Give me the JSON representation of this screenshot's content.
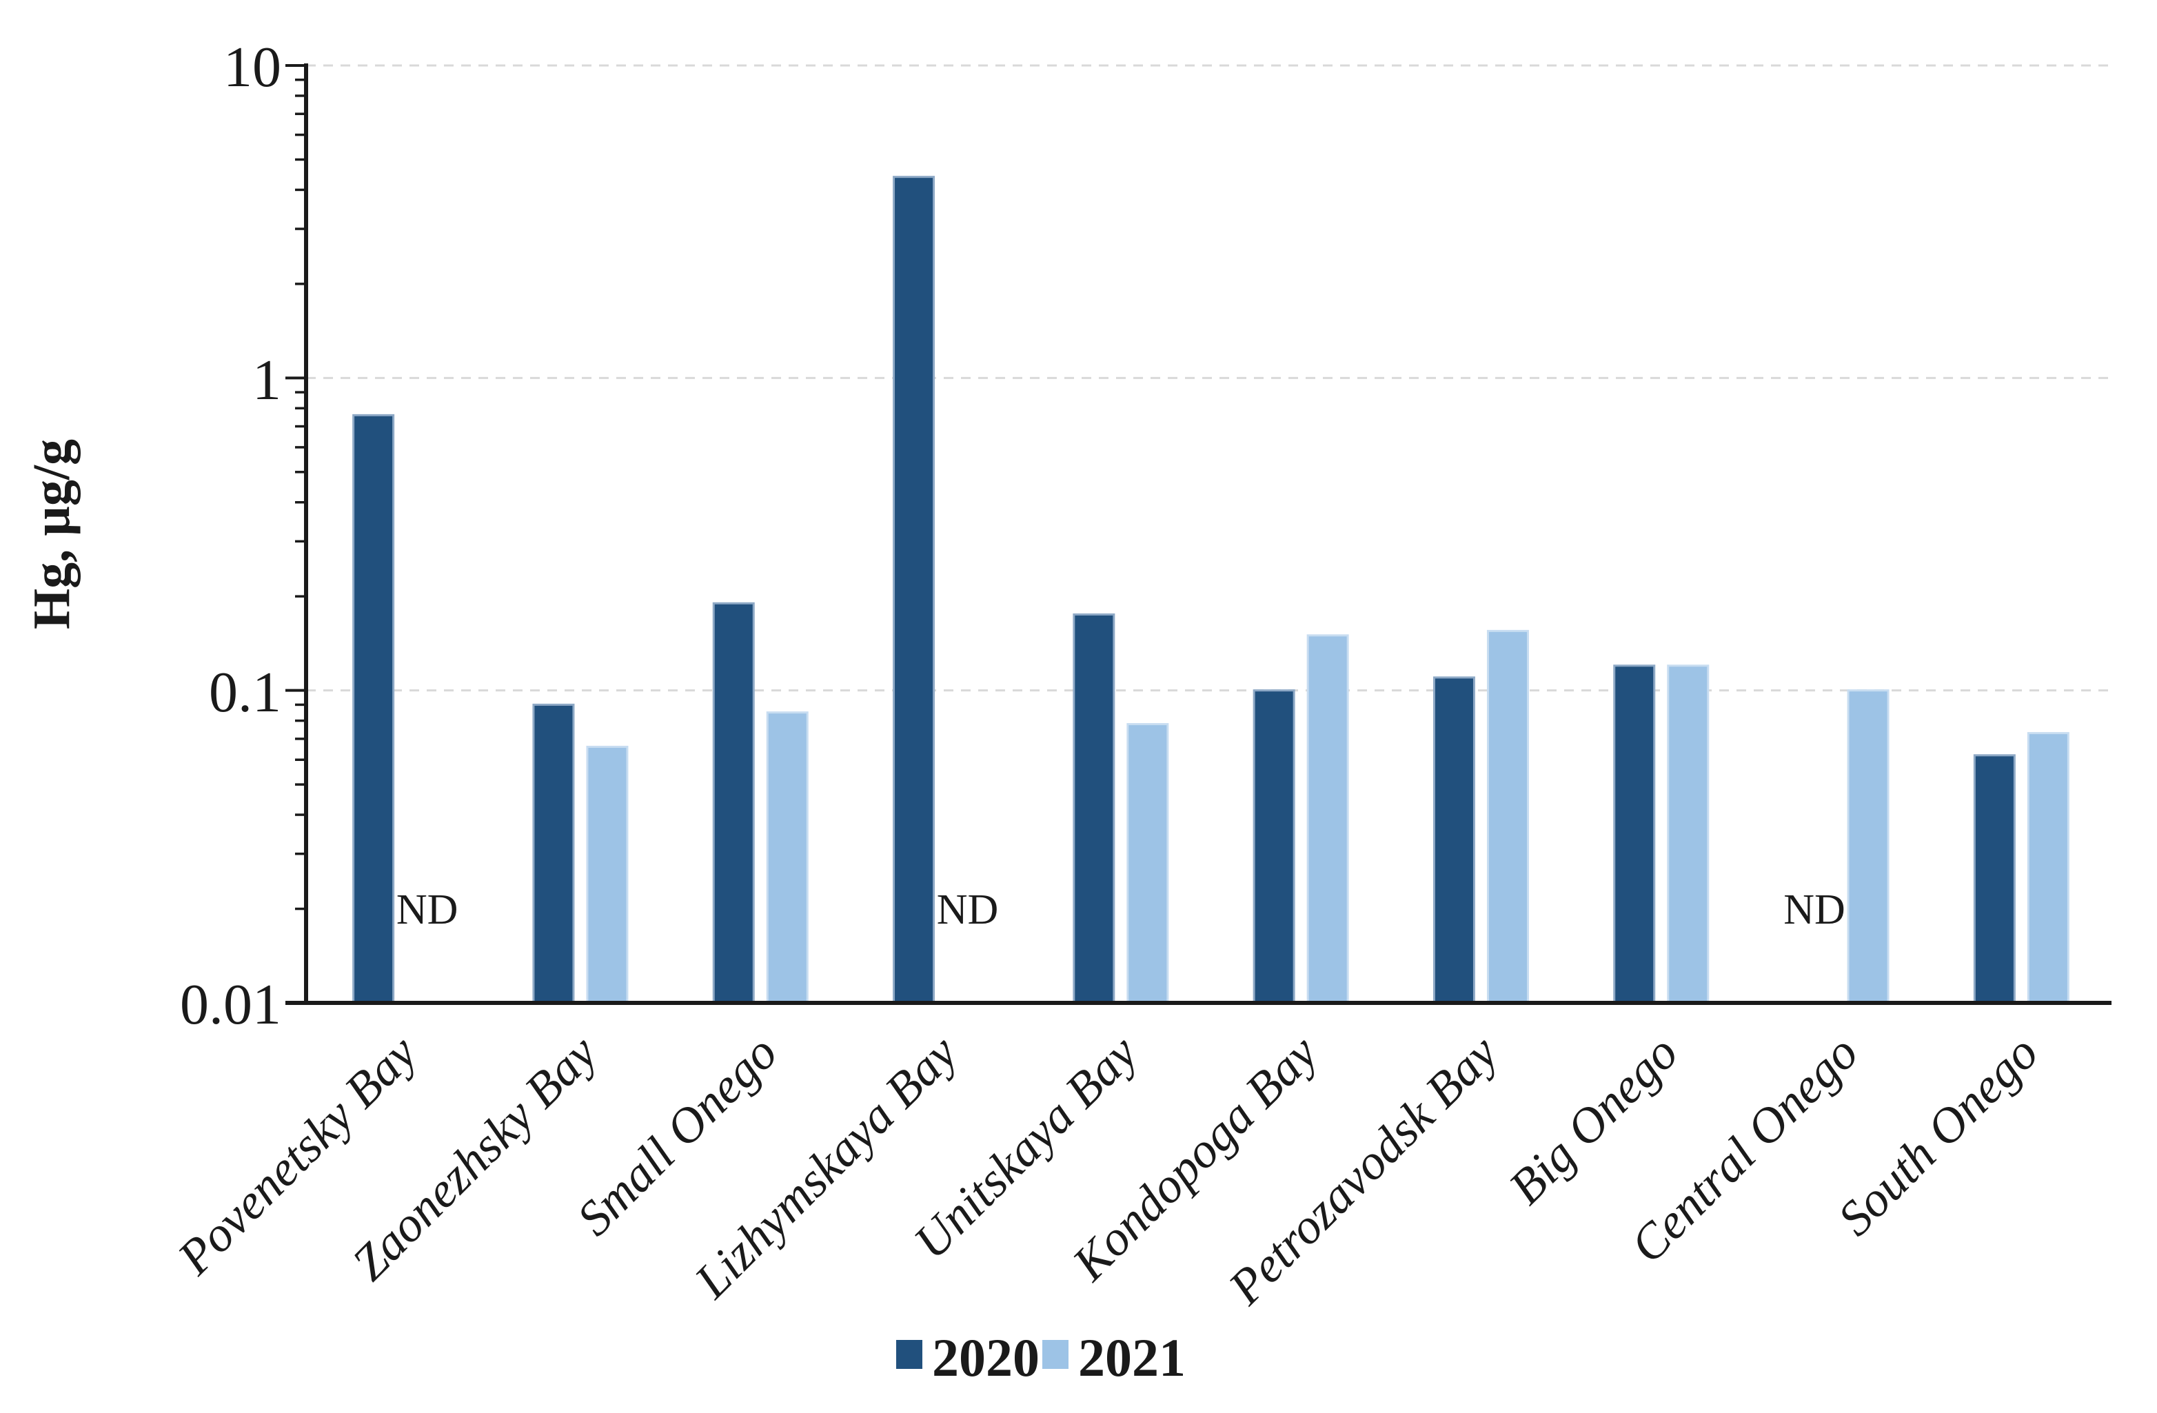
{
  "figure": {
    "background": "#ffffff",
    "axis_color": "#1a1a1a",
    "gridline_color": "#d9d9d9"
  },
  "y_axis": {
    "title": "Hg, µg/g",
    "tick_labels": [
      "10",
      "1",
      "0.1",
      "0.01"
    ]
  },
  "legend": {
    "items": [
      {
        "label": "2020",
        "color": "#21507d"
      },
      {
        "label": "2021",
        "color": "#9dc3e6"
      }
    ]
  },
  "nd_label": "ND",
  "chart_data": {
    "type": "bar",
    "title": "",
    "xlabel": "",
    "ylabel": "Hg, µg/g",
    "y_scale": "log",
    "ylim": [
      0.01,
      10
    ],
    "yticks": [
      10,
      1,
      0.1,
      0.01
    ],
    "ytick_labels": [
      "10",
      "1",
      "0.1",
      "0.01"
    ],
    "grid": "horizontal dashed at decades",
    "legend_position": "bottom-center",
    "missing_value_label": "ND",
    "categories": [
      "Povenetsky Bay",
      "Zaonezhsky Bay",
      "Small Onego",
      "Lizhymskaya Bay",
      "Unitskaya Bay",
      "Kondopoga Bay",
      "Petrozavodsk Bay",
      "Big Onego",
      "Central Onego",
      "South Onego"
    ],
    "series": [
      {
        "name": "2020",
        "color": "#21507d",
        "edge_color": "#8ea9c6",
        "values": [
          0.76,
          0.09,
          0.19,
          4.4,
          0.175,
          0.1,
          0.11,
          0.12,
          null,
          0.062
        ]
      },
      {
        "name": "2021",
        "color": "#9dc3e6",
        "edge_color": "#c8ddf1",
        "values": [
          null,
          0.066,
          0.085,
          null,
          0.078,
          0.15,
          0.155,
          0.12,
          0.1,
          0.073
        ]
      }
    ]
  }
}
